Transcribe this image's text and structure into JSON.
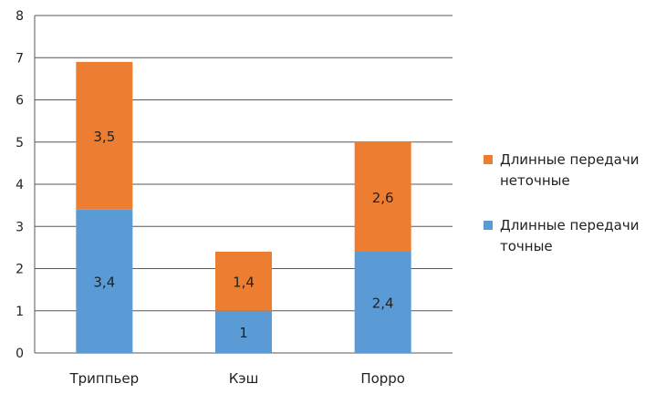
{
  "chart_data": {
    "type": "bar",
    "stacked": true,
    "categories": [
      "Триппьер",
      "Кэш",
      "Порро"
    ],
    "series": [
      {
        "name": "Длинные передачи точные",
        "values": [
          3.4,
          1,
          2.4
        ],
        "labels": [
          "3,4",
          "1",
          "2,4"
        ],
        "color": "#5b9bd5"
      },
      {
        "name": "Длинные передачи неточные",
        "values": [
          3.5,
          1.4,
          2.6
        ],
        "labels": [
          "3,5",
          "1,4",
          "2,6"
        ],
        "color": "#ed7d31"
      }
    ],
    "ylim": [
      0,
      8
    ],
    "yticks": [
      "0",
      "1",
      "2",
      "3",
      "4",
      "5",
      "6",
      "7",
      "8"
    ],
    "grid": true,
    "legend_position": "right",
    "legend_order": [
      1,
      0
    ]
  }
}
